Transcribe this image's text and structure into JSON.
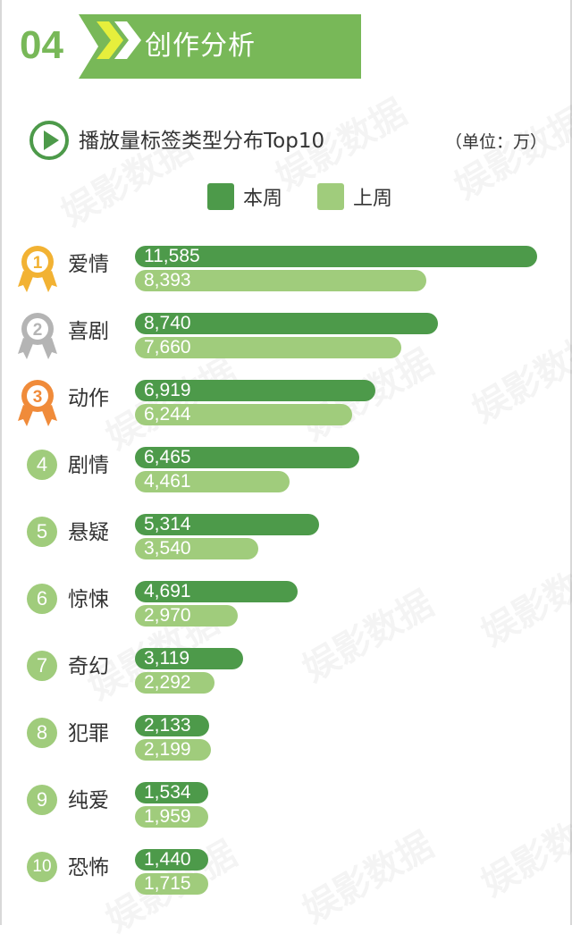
{
  "header": {
    "section_number": "04",
    "title": "创作分析"
  },
  "subtitle": "播放量标签类型分布Top10",
  "unit": "（单位：万）",
  "legend": [
    {
      "label": "本周",
      "color": "#4d9a4a"
    },
    {
      "label": "上周",
      "color": "#a0cc7c"
    }
  ],
  "watermark": "娱影数据",
  "chart_data": {
    "type": "bar",
    "orientation": "horizontal",
    "categories": [
      "爱情",
      "喜剧",
      "动作",
      "剧情",
      "悬疑",
      "惊悚",
      "奇幻",
      "犯罪",
      "纯爱",
      "恐怖"
    ],
    "ranks": [
      "1",
      "2",
      "3",
      "4",
      "5",
      "6",
      "7",
      "8",
      "9",
      "10"
    ],
    "series": [
      {
        "name": "本周",
        "values": [
          11585,
          8740,
          6919,
          6465,
          5314,
          4691,
          3119,
          2133,
          1534,
          1440
        ]
      },
      {
        "name": "上周",
        "values": [
          8393,
          7660,
          6244,
          4461,
          3540,
          2970,
          2292,
          2199,
          1959,
          1715
        ]
      }
    ],
    "value_labels": {
      "本周": [
        "11,585",
        "8,740",
        "6,919",
        "6,465",
        "5,314",
        "4,691",
        "3,119",
        "2,133",
        "1,534",
        "1,440"
      ],
      "上周": [
        "8,393",
        "7,660",
        "6,244",
        "4,461",
        "3,540",
        "2,970",
        "2,292",
        "2,199",
        "1,959",
        "1,715"
      ]
    },
    "xlim": [
      0,
      11585
    ],
    "colors": {
      "current": "#4d9a4a",
      "previous": "#a0cc7c",
      "gold": "#f2b233",
      "silver": "#b4b4b4",
      "bronze": "#f08b3a"
    }
  }
}
